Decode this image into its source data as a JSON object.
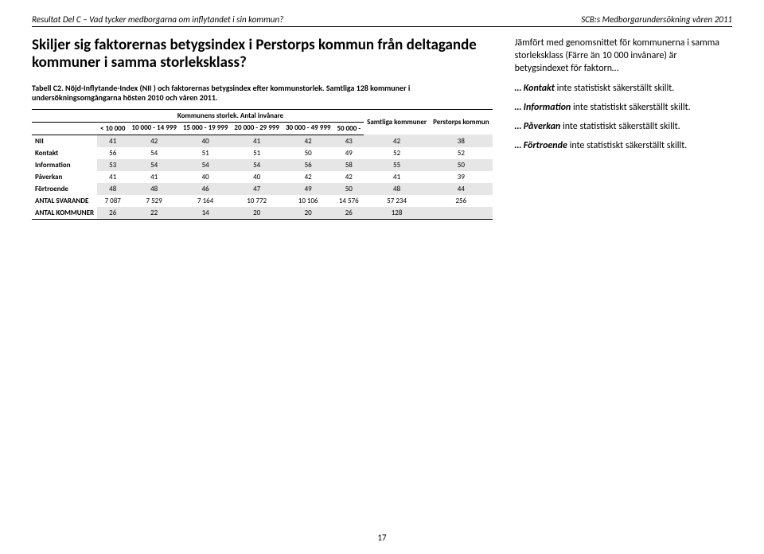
{
  "header": {
    "left": "Resultat Del C – Vad tycker medborgarna om inflytandet i sin kommun?",
    "right": "SCB:s Medborgarundersökning våren 2011"
  },
  "question_title": "Skiljer sig faktorernas betygsindex i Perstorps kommun från deltagande kommuner i samma storleksklass?",
  "table_caption": "Tabell C2. Nöjd-Inflytande-Index (NII ) och faktorernas betygsindex efter kommunstorlek. Samtliga 128 kommuner i undersökningsomgångarna hösten 2010 och våren 2011.",
  "table": {
    "group_header": "Kommunens storlek. Antal invånare",
    "col_right1": "Samtliga kommuner",
    "col_right2": "Perstorps kommun",
    "cols": [
      "< 10 000",
      "10 000 - 14 999",
      "15 000 - 19 999",
      "20 000 - 29 999",
      "30 000 - 49 999",
      "50 000 -"
    ],
    "rows": [
      {
        "label": "NII",
        "vals": [
          41,
          42,
          40,
          41,
          42,
          43,
          42,
          38
        ]
      },
      {
        "label": "Kontakt",
        "vals": [
          56,
          54,
          51,
          51,
          50,
          49,
          52,
          52
        ]
      },
      {
        "label": "Information",
        "vals": [
          53,
          54,
          54,
          54,
          56,
          58,
          55,
          50
        ]
      },
      {
        "label": "Påverkan",
        "vals": [
          41,
          41,
          40,
          40,
          42,
          42,
          41,
          39
        ]
      },
      {
        "label": "Förtroende",
        "vals": [
          48,
          48,
          46,
          47,
          49,
          50,
          48,
          44
        ]
      },
      {
        "label": "ANTAL SVARANDE",
        "vals": [
          "7 087",
          "7 529",
          "7 164",
          "10 772",
          "10 106",
          "14 576",
          "57 234",
          256
        ]
      },
      {
        "label": "ANTAL KOMMUNER",
        "vals": [
          26,
          22,
          14,
          20,
          20,
          26,
          128,
          ""
        ]
      }
    ]
  },
  "right": {
    "intro": "Jämfört med genomsnittet för kommunerna i samma storleksklass (Färre än 10 000 invånare) är betygsindexet för faktorn…",
    "lines": [
      {
        "lead": "… Kontakt",
        "rest": " inte statistiskt säkerställt skillt."
      },
      {
        "lead": "… Information",
        "rest": " inte statistiskt säkerställt skillt."
      },
      {
        "lead": "… Påverkan",
        "rest": " inte statistiskt säkerställt skillt."
      },
      {
        "lead": "… Förtroende",
        "rest": " inte statistiskt säkerställt skillt."
      }
    ]
  },
  "footer": "17"
}
